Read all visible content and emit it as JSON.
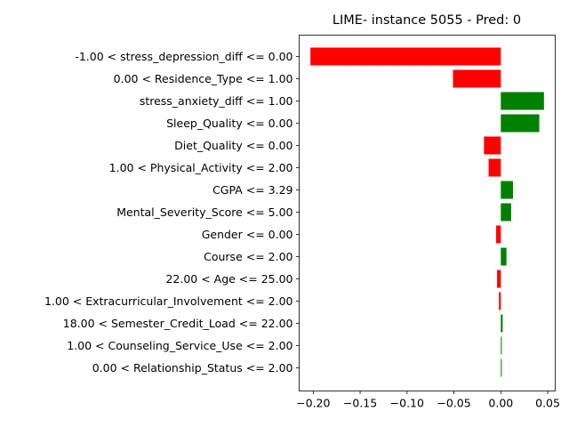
{
  "chart_data": {
    "type": "bar",
    "orientation": "horizontal",
    "title": "LIME- instance 5055 - Pred: 0",
    "xlabel": "",
    "ylabel": "",
    "xlim": [
      -0.215,
      0.058
    ],
    "xticks": [
      -0.2,
      -0.15,
      -0.1,
      -0.05,
      0.0,
      0.05
    ],
    "xtick_labels": [
      "−0.20",
      "−0.15",
      "−0.10",
      "−0.05",
      "0.00",
      "0.05"
    ],
    "grid": false,
    "legend": "none",
    "colors": {
      "positive": "#008000",
      "negative": "#ff0000"
    },
    "categories": [
      "-1.00 < stress_depression_diff <= 0.00",
      "0.00 < Residence_Type <= 1.00",
      "stress_anxiety_diff <= 1.00",
      "Sleep_Quality <= 0.00",
      "Diet_Quality <= 0.00",
      "1.00 < Physical_Activity <= 2.00",
      "CGPA <= 3.29",
      "Mental_Severity_Score <= 5.00",
      "Gender <= 0.00",
      "Course <= 2.00",
      "22.00 < Age <= 25.00",
      "1.00 < Extracurricular_Involvement <= 2.00",
      "18.00 < Semester_Credit_Load <= 22.00",
      "1.00 < Counseling_Service_Use <= 2.00",
      "0.00 < Relationship_Status <= 2.00"
    ],
    "values": [
      -0.203,
      -0.051,
      0.046,
      0.041,
      -0.018,
      -0.013,
      0.013,
      0.011,
      -0.005,
      0.006,
      -0.004,
      -0.002,
      0.002,
      0.001,
      0.001
    ]
  }
}
